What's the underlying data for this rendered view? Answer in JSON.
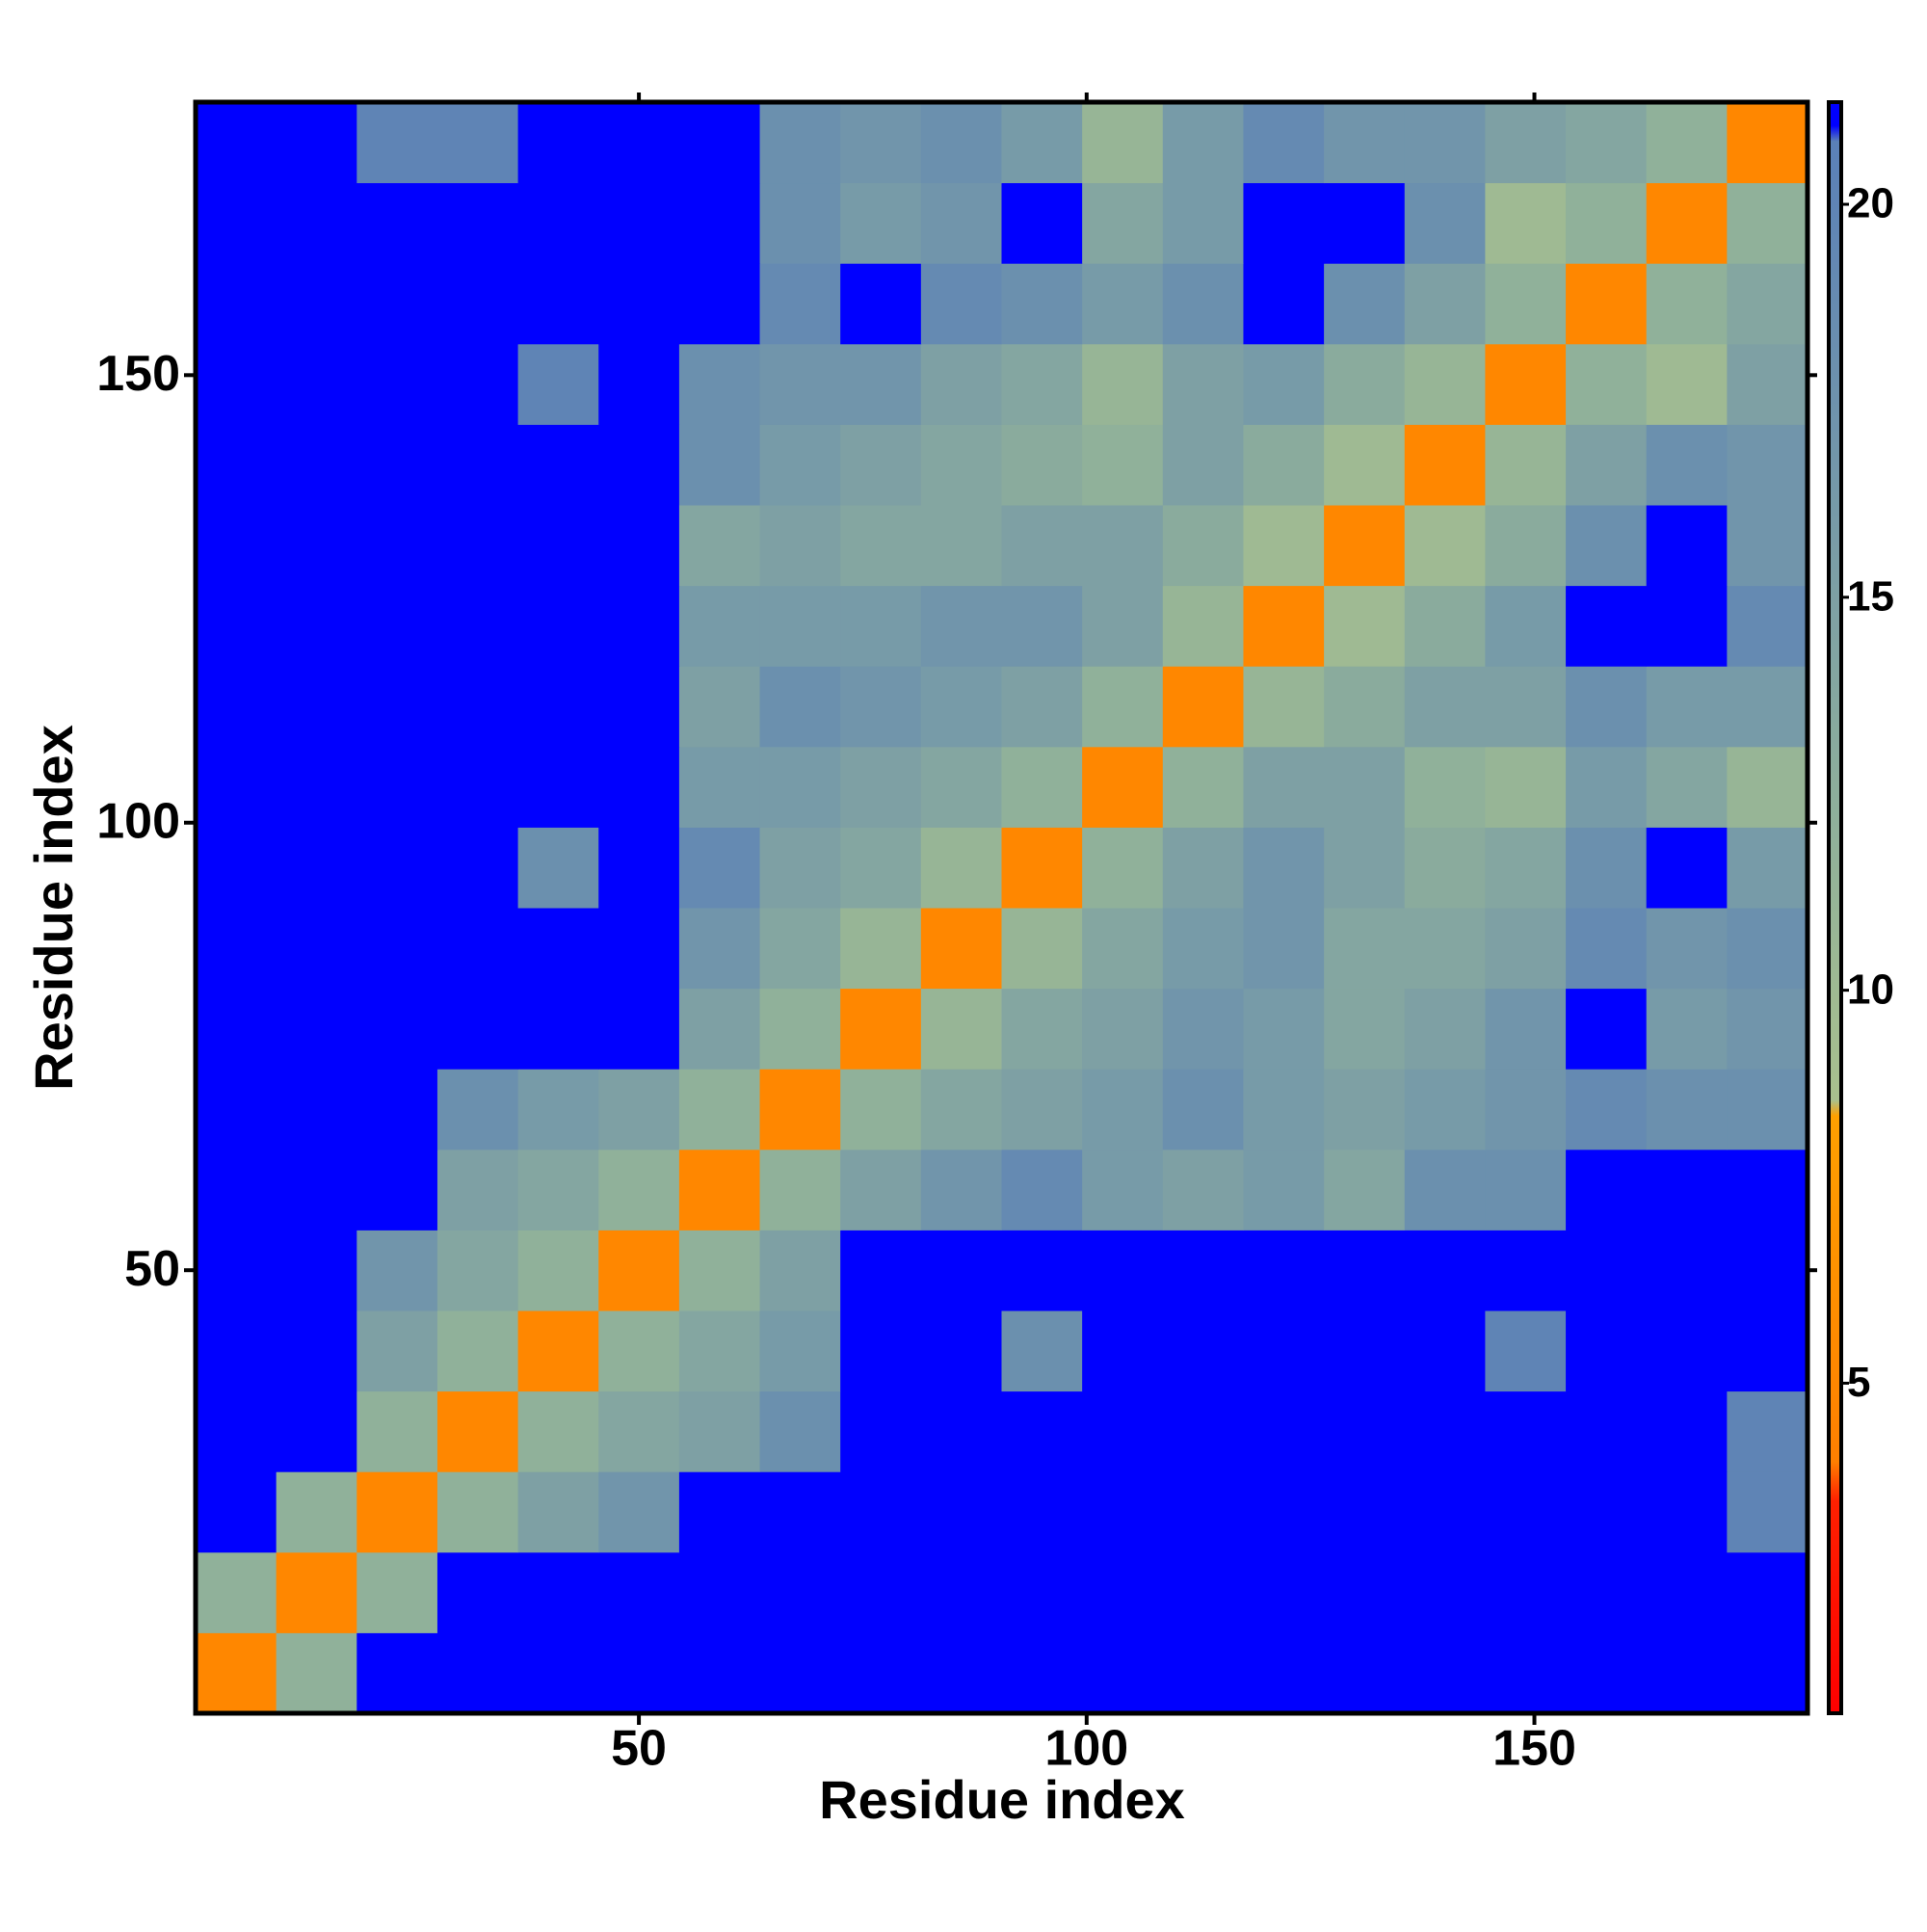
{
  "chart_data": {
    "type": "heatmap",
    "xlabel": "Residue index",
    "ylabel": "Residue index",
    "x": [
      5,
      14,
      23,
      32,
      41,
      50,
      59,
      68,
      77,
      86,
      95,
      104,
      113,
      122,
      131,
      140,
      149,
      158,
      167,
      176
    ],
    "y": [
      5,
      14,
      23,
      32,
      41,
      50,
      59,
      68,
      77,
      86,
      95,
      104,
      113,
      122,
      131,
      140,
      149,
      158,
      167,
      176
    ],
    "z": [
      [
        5,
        12,
        21,
        21,
        21,
        21,
        21,
        21,
        21,
        21,
        21,
        21,
        21,
        21,
        21,
        21,
        21,
        21,
        21,
        21
      ],
      [
        12,
        5,
        12,
        21,
        21,
        21,
        21,
        21,
        21,
        21,
        21,
        21,
        21,
        21,
        21,
        21,
        21,
        21,
        21,
        21
      ],
      [
        21,
        12,
        5,
        12,
        15,
        17,
        21,
        21,
        21,
        21,
        21,
        21,
        21,
        21,
        21,
        21,
        21,
        21,
        21,
        20
      ],
      [
        21,
        21,
        12,
        5,
        12,
        14,
        15,
        18,
        21,
        21,
        21,
        21,
        21,
        21,
        21,
        21,
        21,
        21,
        21,
        20
      ],
      [
        21,
        21,
        15,
        12,
        5,
        12,
        14,
        16,
        21,
        21,
        18,
        21,
        21,
        21,
        21,
        21,
        20,
        21,
        21,
        21
      ],
      [
        21,
        21,
        17,
        14,
        12,
        5,
        12,
        15,
        21,
        21,
        21,
        21,
        21,
        21,
        21,
        21,
        21,
        21,
        21,
        21
      ],
      [
        21,
        21,
        21,
        15,
        14,
        12,
        5,
        12,
        15,
        17,
        19,
        16,
        15,
        16,
        14,
        18,
        18,
        21,
        21,
        21
      ],
      [
        21,
        21,
        21,
        18,
        16,
        15,
        12,
        5,
        12,
        14,
        15,
        16,
        18,
        16,
        15,
        16,
        17,
        19,
        18,
        18
      ],
      [
        21,
        21,
        21,
        21,
        21,
        21,
        15,
        12,
        5,
        11,
        14,
        15,
        17,
        16,
        14,
        15,
        17,
        21,
        16,
        17
      ],
      [
        21,
        21,
        21,
        21,
        21,
        21,
        17,
        14,
        11,
        5,
        11,
        14,
        16,
        17,
        14,
        14,
        15,
        19,
        17,
        18
      ],
      [
        21,
        21,
        21,
        21,
        18,
        21,
        19,
        15,
        14,
        11,
        5,
        12,
        15,
        17,
        15,
        13,
        14,
        18,
        21,
        16
      ],
      [
        21,
        21,
        21,
        21,
        21,
        21,
        16,
        16,
        15,
        14,
        12,
        5,
        12,
        15,
        15,
        12,
        11,
        16,
        14,
        11
      ],
      [
        21,
        21,
        21,
        21,
        21,
        21,
        15,
        18,
        17,
        16,
        15,
        12,
        5,
        11,
        13,
        15,
        15,
        18,
        16,
        16
      ],
      [
        21,
        21,
        21,
        21,
        21,
        21,
        16,
        16,
        16,
        17,
        17,
        15,
        11,
        5,
        10,
        13,
        16,
        21,
        21,
        19
      ],
      [
        21,
        21,
        21,
        21,
        21,
        21,
        14,
        15,
        14,
        14,
        15,
        15,
        13,
        10,
        5,
        10,
        13,
        18,
        21,
        17
      ],
      [
        21,
        21,
        21,
        21,
        21,
        21,
        18,
        16,
        15,
        14,
        13,
        12,
        15,
        13,
        10,
        5,
        11,
        15,
        18,
        17
      ],
      [
        21,
        21,
        21,
        21,
        20,
        21,
        18,
        17,
        17,
        15,
        14,
        11,
        15,
        16,
        13,
        11,
        5,
        12,
        10,
        15
      ],
      [
        21,
        21,
        21,
        21,
        21,
        21,
        21,
        19,
        21,
        19,
        18,
        16,
        18,
        21,
        18,
        15,
        12,
        5,
        12,
        14
      ],
      [
        21,
        21,
        21,
        21,
        21,
        21,
        21,
        18,
        16,
        17,
        21,
        14,
        16,
        21,
        21,
        18,
        10,
        12,
        5,
        12
      ],
      [
        21,
        21,
        20,
        20,
        21,
        21,
        21,
        18,
        17,
        18,
        16,
        11,
        16,
        19,
        17,
        17,
        15,
        14,
        12,
        5
      ]
    ],
    "xlim": [
      0.5,
      180.5
    ],
    "ylim": [
      0.5,
      180.5
    ],
    "xticks": [
      50,
      100,
      150
    ],
    "yticks": [
      50,
      100,
      150
    ],
    "zlim": [
      0.8,
      21.3
    ],
    "zticks": [
      5,
      10,
      15,
      20
    ],
    "colorscale": [
      [
        0.8,
        "#ff0000"
      ],
      [
        3.5,
        "#ff2000"
      ],
      [
        4,
        "#ff7f00"
      ],
      [
        8.4,
        "#ffa000"
      ],
      [
        8.6,
        "#a9c08e"
      ],
      [
        12,
        "#90b19a"
      ],
      [
        20.8,
        "#5a80b8"
      ],
      [
        21,
        "#0000ff"
      ],
      [
        21.3,
        "#0000ff"
      ]
    ]
  }
}
